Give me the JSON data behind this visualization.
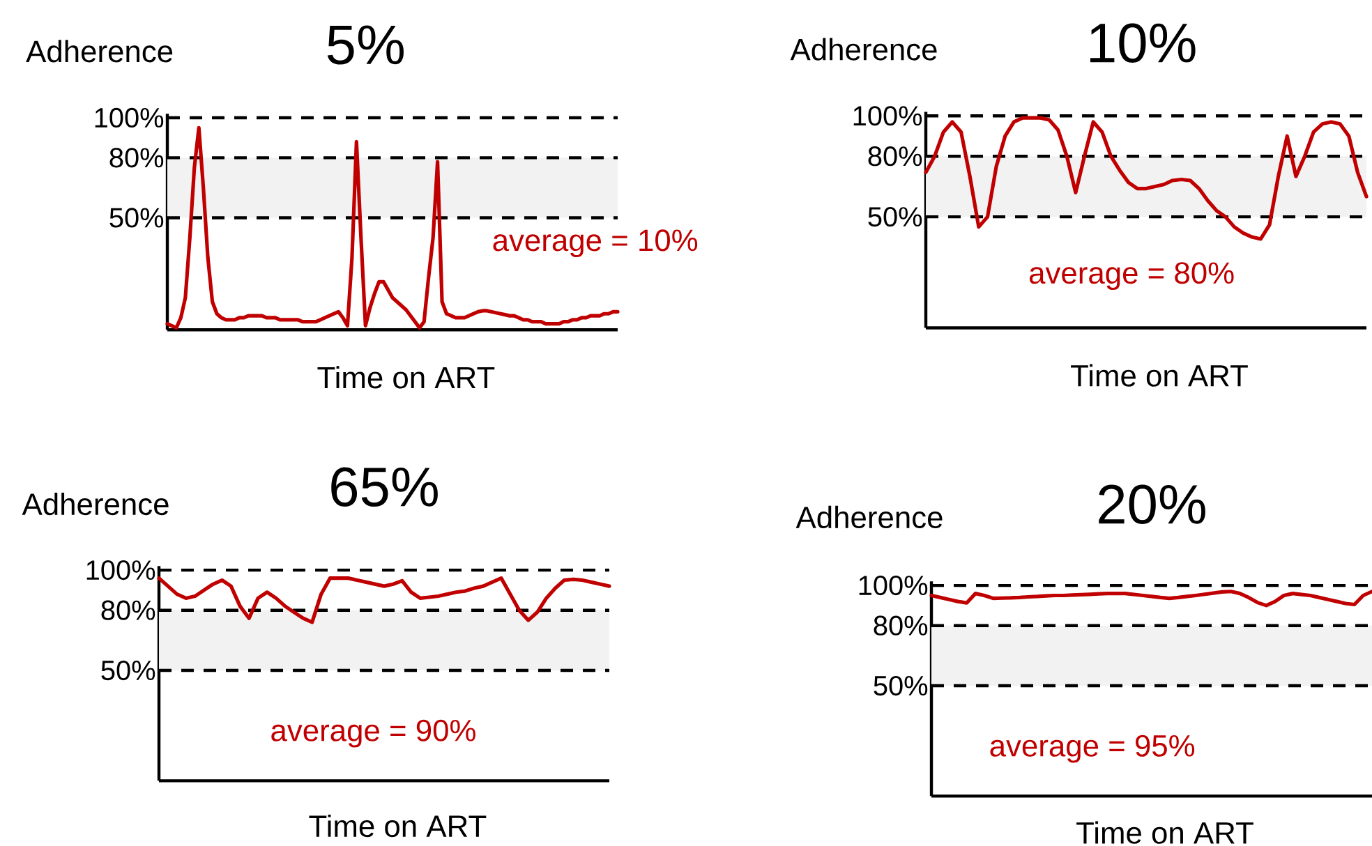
{
  "chart_data": [
    {
      "type": "line",
      "title": "5%",
      "xlabel": "Time on ART",
      "ylabel": "Adherence",
      "annotations": [
        "average = 10%"
      ],
      "ylim": [
        -6,
        102
      ],
      "yticks": [
        {
          "value": 100,
          "label": "100%"
        },
        {
          "value": 80,
          "label": "80%"
        },
        {
          "value": 50,
          "label": "50%"
        }
      ],
      "tick_labels": "y",
      "grid": false,
      "marker": "none",
      "line_style": "solid",
      "categories": [
        null,
        null,
        null,
        null,
        null,
        null,
        null,
        null,
        null,
        null,
        null,
        null,
        null,
        null,
        null,
        null,
        null,
        null,
        null,
        null,
        null,
        null,
        null,
        null,
        null,
        null,
        null,
        null,
        null,
        null,
        null,
        null,
        null,
        null,
        null,
        null,
        null,
        null,
        null,
        null,
        null,
        null,
        null,
        null,
        null,
        null,
        null,
        null,
        null,
        null,
        null,
        null,
        null,
        null,
        null,
        null,
        null,
        null,
        null,
        null,
        null,
        null,
        null,
        null,
        null,
        null,
        null,
        null,
        null,
        null,
        null,
        null,
        null,
        null,
        null,
        null,
        null,
        null,
        null,
        null,
        null,
        null,
        null,
        null,
        null,
        null,
        null,
        null,
        null,
        null,
        null,
        null,
        null,
        null,
        null,
        null,
        null,
        null,
        null,
        null,
        null
      ],
      "ref_lines": [
        {
          "axis": "y",
          "value": 100,
          "color": "#000000",
          "line_style": "dashed"
        },
        {
          "axis": "y",
          "value": 80,
          "color": "#000000",
          "line_style": "dashed"
        },
        {
          "axis": "y",
          "value": 50,
          "color": "#000000",
          "line_style": "dashed"
        }
      ],
      "bands": [
        {
          "axis": "y",
          "from": 50,
          "to": 80,
          "color": "#f2f2f2"
        }
      ],
      "series": [
        {
          "color": "#c00000",
          "values": [
            -3,
            -4,
            -5,
            0,
            10,
            40,
            75,
            95,
            65,
            30,
            8,
            2,
            0,
            -1,
            -1,
            -1,
            0,
            0,
            1,
            1,
            1,
            1,
            0,
            0,
            0,
            -1,
            -1,
            -1,
            -1,
            -1,
            -2,
            -2,
            -2,
            -2,
            -1,
            0,
            1,
            2,
            3,
            0,
            -4,
            30,
            88,
            40,
            -4,
            5,
            12,
            18,
            18,
            14,
            10,
            8,
            6,
            4,
            1,
            -2,
            -5,
            -2,
            20,
            40,
            78,
            8,
            2,
            1,
            0,
            0,
            0,
            1,
            2,
            3,
            3.5,
            3.5,
            3,
            2.5,
            2,
            1.5,
            1,
            1,
            0,
            -1,
            -1,
            -2,
            -2,
            -2,
            -3,
            -3,
            -3,
            -3,
            -2,
            -2,
            -1,
            -1,
            0,
            0,
            1,
            1,
            1,
            2,
            2,
            3,
            3
          ]
        }
      ]
    },
    {
      "type": "line",
      "title": "10%",
      "xlabel": "Time on ART",
      "ylabel": "Adherence",
      "annotations": [
        "average = 80%"
      ],
      "ylim": [
        -5,
        102
      ],
      "yticks": [
        {
          "value": 100,
          "label": "100%"
        },
        {
          "value": 80,
          "label": "80%"
        },
        {
          "value": 50,
          "label": "50%"
        }
      ],
      "tick_labels": "y",
      "grid": false,
      "marker": "none",
      "line_style": "solid",
      "categories": [
        null,
        null,
        null,
        null,
        null,
        null,
        null,
        null,
        null,
        null,
        null,
        null,
        null,
        null,
        null,
        null,
        null,
        null,
        null,
        null,
        null,
        null,
        null,
        null,
        null,
        null,
        null,
        null,
        null,
        null,
        null,
        null,
        null,
        null,
        null,
        null,
        null,
        null,
        null,
        null,
        null,
        null,
        null,
        null,
        null,
        null,
        null,
        null,
        null,
        null,
        null
      ],
      "ref_lines": [
        {
          "axis": "y",
          "value": 100,
          "color": "#000000",
          "line_style": "dashed"
        },
        {
          "axis": "y",
          "value": 80,
          "color": "#000000",
          "line_style": "dashed"
        },
        {
          "axis": "y",
          "value": 50,
          "color": "#000000",
          "line_style": "dashed"
        }
      ],
      "bands": [
        {
          "axis": "y",
          "from": 50,
          "to": 80,
          "color": "#f2f2f2"
        }
      ],
      "series": [
        {
          "color": "#c00000",
          "values": [
            72,
            80,
            92,
            97,
            92,
            70,
            45,
            50,
            75,
            90,
            97,
            99,
            99,
            99,
            98,
            93,
            80,
            62,
            80,
            97,
            92,
            80,
            73,
            67,
            64,
            64,
            65,
            66,
            68,
            68.5,
            68,
            64,
            58,
            53,
            50,
            45,
            42,
            40,
            39,
            46,
            70,
            90,
            70,
            80,
            92,
            96,
            97,
            96,
            90,
            72,
            60
          ]
        }
      ]
    },
    {
      "type": "line",
      "title": "65%",
      "xlabel": "Time on ART",
      "ylabel": "Adherence",
      "annotations": [
        "average = 90%"
      ],
      "ylim": [
        -5,
        102
      ],
      "yticks": [
        {
          "value": 100,
          "label": "100%"
        },
        {
          "value": 80,
          "label": "80%"
        },
        {
          "value": 50,
          "label": "50%"
        }
      ],
      "tick_labels": "y",
      "grid": false,
      "marker": "none",
      "line_style": "solid",
      "categories": [
        null,
        null,
        null,
        null,
        null,
        null,
        null,
        null,
        null,
        null,
        null,
        null,
        null,
        null,
        null,
        null,
        null,
        null,
        null,
        null,
        null,
        null,
        null,
        null,
        null,
        null,
        null,
        null,
        null,
        null,
        null,
        null,
        null,
        null,
        null,
        null,
        null,
        null,
        null,
        null,
        null,
        null,
        null,
        null,
        null,
        null,
        null,
        null,
        null,
        null,
        null
      ],
      "ref_lines": [
        {
          "axis": "y",
          "value": 100,
          "color": "#000000",
          "line_style": "dashed"
        },
        {
          "axis": "y",
          "value": 80,
          "color": "#000000",
          "line_style": "dashed"
        },
        {
          "axis": "y",
          "value": 50,
          "color": "#000000",
          "line_style": "dashed"
        }
      ],
      "bands": [
        {
          "axis": "y",
          "from": 50,
          "to": 80,
          "color": "#f2f2f2"
        }
      ],
      "series": [
        {
          "color": "#c00000",
          "values": [
            96,
            92,
            88,
            86,
            87,
            90,
            93,
            95,
            92,
            82,
            76,
            86,
            89,
            86,
            82,
            79,
            76,
            74,
            88,
            96,
            96,
            96,
            95,
            94,
            93,
            92,
            93,
            94.7,
            89,
            86,
            86.5,
            87,
            88,
            89,
            89.6,
            91,
            92,
            94,
            96,
            88,
            80,
            75,
            79,
            86,
            91,
            95,
            95.4,
            95,
            94,
            93,
            92
          ]
        }
      ]
    },
    {
      "type": "line",
      "title": "20%",
      "xlabel": "Time on ART",
      "ylabel": "Adherence",
      "annotations": [
        "average = 95%"
      ],
      "ylim": [
        -5,
        102
      ],
      "yticks": [
        {
          "value": 100,
          "label": "100%"
        },
        {
          "value": 80,
          "label": "80%"
        },
        {
          "value": 50,
          "label": "50%"
        }
      ],
      "tick_labels": "y",
      "grid": false,
      "marker": "none",
      "line_style": "solid",
      "categories": [
        null,
        null,
        null,
        null,
        null,
        null,
        null,
        null,
        null,
        null,
        null,
        null,
        null,
        null,
        null,
        null,
        null,
        null,
        null,
        null,
        null,
        null,
        null,
        null,
        null,
        null,
        null,
        null,
        null,
        null,
        null,
        null,
        null,
        null,
        null,
        null,
        null,
        null,
        null,
        null,
        null,
        null,
        null,
        null,
        null,
        null,
        null,
        null,
        null,
        null,
        null
      ],
      "ref_lines": [
        {
          "axis": "y",
          "value": 100,
          "color": "#000000",
          "line_style": "dashed"
        },
        {
          "axis": "y",
          "value": 80,
          "color": "#000000",
          "line_style": "dashed"
        },
        {
          "axis": "y",
          "value": 50,
          "color": "#000000",
          "line_style": "dashed"
        }
      ],
      "bands": [
        {
          "axis": "y",
          "from": 50,
          "to": 80,
          "color": "#f2f2f2"
        }
      ],
      "series": [
        {
          "color": "#c00000",
          "values": [
            95,
            94,
            93,
            92,
            91.3,
            96,
            95,
            93.6,
            93.7,
            93.8,
            94,
            94.3,
            94.5,
            94.8,
            95,
            95,
            95.2,
            95.4,
            95.6,
            95.8,
            96,
            96,
            96,
            95.5,
            95,
            94.5,
            94,
            93.6,
            94,
            94.5,
            95,
            95.6,
            96.2,
            96.8,
            97,
            96,
            94,
            91.5,
            90,
            92,
            95,
            96,
            95.5,
            95,
            94,
            93,
            92,
            91,
            90.5,
            95,
            97
          ]
        }
      ]
    }
  ]
}
